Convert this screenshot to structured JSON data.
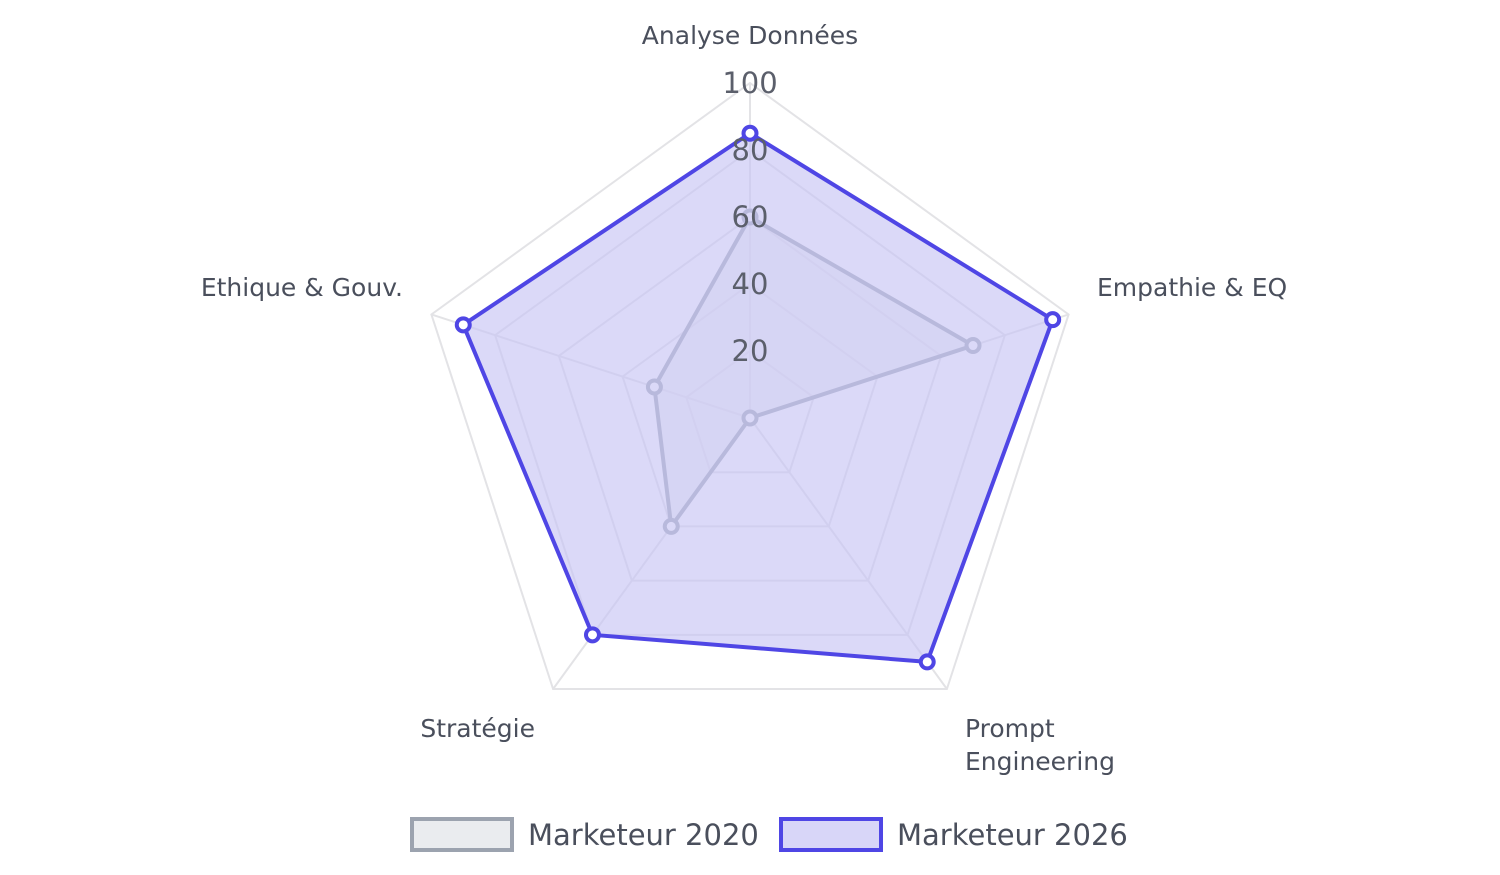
{
  "chart_data": {
    "type": "radar",
    "axes": [
      "Analyse Données",
      "Empathie & EQ",
      "Prompt Engineering",
      "Stratégie",
      "Ethique & Gouv."
    ],
    "axis_label_lines": [
      [
        "Analyse Données"
      ],
      [
        "Empathie & EQ"
      ],
      [
        "Prompt",
        "Engineering"
      ],
      [
        "Stratégie"
      ],
      [
        "Ethique & Gouv."
      ]
    ],
    "r_range": [
      0,
      100
    ],
    "r_ticks": [
      20,
      40,
      60,
      80,
      100
    ],
    "grid": true,
    "legend_position": "bottom",
    "series": [
      {
        "name": "Marketeur 2020",
        "values": [
          60,
          70,
          0,
          40,
          30
        ],
        "stroke": "#9ca3af",
        "fill": "#e5e7eb"
      },
      {
        "name": "Marketeur 2026",
        "values": [
          85,
          95,
          90,
          80,
          90
        ],
        "stroke": "#4f46e5",
        "fill": "#c7c5f5"
      }
    ]
  }
}
